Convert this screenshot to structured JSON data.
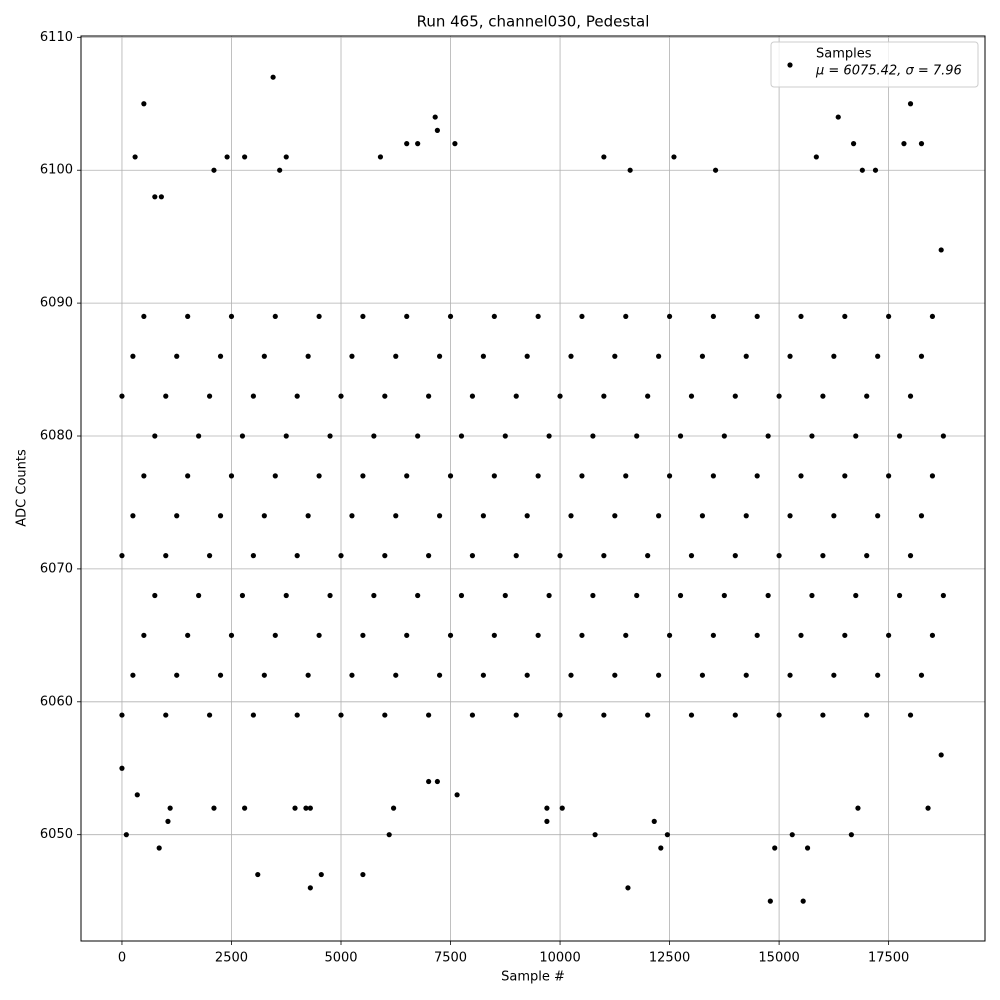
{
  "chart_data": {
    "type": "scatter",
    "title": "Run 465, channel030, Pedestal",
    "x_label": "Sample #",
    "y_label": "ADC Counts",
    "xlim": [
      -935,
      19700
    ],
    "ylim": [
      6042,
      6110.1
    ],
    "xticks": [
      0,
      2500,
      5000,
      7500,
      10000,
      12500,
      15000,
      17500
    ],
    "yticks": [
      6050,
      6060,
      6070,
      6080,
      6090,
      6100,
      6110
    ],
    "grid": true,
    "legend": "upper right",
    "legend_note": "μ = 6075.42, σ = 7.96",
    "series": [
      {
        "name": "Samples",
        "color": "#000000",
        "x": [
          0,
          1000,
          2000,
          3000,
          4000,
          5000,
          6000,
          7000,
          8000,
          9000,
          10000,
          11000,
          12000,
          13000,
          14000,
          15000,
          16000,
          17000,
          18000,
          250,
          1250,
          2250,
          3250,
          4250,
          5250,
          6250,
          7250,
          8250,
          9250,
          10250,
          11250,
          12250,
          13250,
          14250,
          15250,
          16250,
          17250,
          18250,
          500,
          1500,
          2500,
          3500,
          4500,
          5500,
          6500,
          7500,
          8500,
          9500,
          10500,
          11500,
          12500,
          13500,
          14500,
          15500,
          16500,
          17500,
          18500,
          750,
          1750,
          2750,
          3750,
          4750,
          5750,
          6750,
          7750,
          8750,
          9750,
          10750,
          11750,
          12750,
          13750,
          14750,
          15750,
          16750,
          17750,
          18750,
          0,
          1000,
          2000,
          3000,
          4000,
          5000,
          6000,
          7000,
          8000,
          9000,
          10000,
          11000,
          12000,
          13000,
          14000,
          15000,
          16000,
          17000,
          18000,
          250,
          1250,
          2250,
          3250,
          4250,
          5250,
          6250,
          7250,
          8250,
          9250,
          10250,
          11250,
          12250,
          13250,
          14250,
          15250,
          16250,
          17250,
          18250,
          500,
          1500,
          2500,
          3500,
          4500,
          5500,
          6500,
          7500,
          8500,
          9500,
          10500,
          11500,
          12500,
          13500,
          14500,
          15500,
          16500,
          17500,
          18500,
          750,
          1750,
          2750,
          3750,
          4750,
          5750,
          6750,
          7750,
          8750,
          9750,
          10750,
          11750,
          12750,
          13750,
          14750,
          15750,
          16750,
          17750,
          18750,
          0,
          1000,
          2000,
          3000,
          4000,
          5000,
          6000,
          7000,
          8000,
          9000,
          10000,
          11000,
          12000,
          13000,
          14000,
          15000,
          16000,
          17000,
          18000,
          250,
          1250,
          2250,
          3250,
          4250,
          5250,
          6250,
          7250,
          8250,
          9250,
          10250,
          11250,
          12250,
          13250,
          14250,
          15250,
          16250,
          17250,
          18250,
          500,
          1500,
          2500,
          3500,
          4500,
          5500,
          6500,
          7500,
          8500,
          9500,
          10500,
          11500,
          12500,
          13500,
          14500,
          15500,
          16500,
          17500,
          18500,
          0,
          100,
          500,
          300,
          350,
          850,
          1050,
          1100,
          900,
          750,
          2100,
          2400,
          2800,
          2100,
          2800,
          3100,
          3450,
          3600,
          3750,
          4300,
          4550,
          4200,
          4300,
          3950,
          5500,
          6100,
          6200,
          5900,
          6500,
          6750,
          7150,
          7200,
          7600,
          7000,
          7200,
          7650,
          9700,
          9700,
          10050,
          10800,
          11000,
          11550,
          11600,
          12150,
          12300,
          12450,
          12600,
          13550,
          14800,
          14900,
          15300,
          15550,
          15650,
          15850,
          16350,
          16700,
          16650,
          16800,
          16900,
          17200,
          17850,
          18000,
          18250,
          18400,
          18700,
          18700
        ],
        "values": [
          6059,
          6059,
          6059,
          6059,
          6059,
          6059,
          6059,
          6059,
          6059,
          6059,
          6059,
          6059,
          6059,
          6059,
          6059,
          6059,
          6059,
          6059,
          6059,
          6062,
          6062,
          6062,
          6062,
          6062,
          6062,
          6062,
          6062,
          6062,
          6062,
          6062,
          6062,
          6062,
          6062,
          6062,
          6062,
          6062,
          6062,
          6062,
          6065,
          6065,
          6065,
          6065,
          6065,
          6065,
          6065,
          6065,
          6065,
          6065,
          6065,
          6065,
          6065,
          6065,
          6065,
          6065,
          6065,
          6065,
          6065,
          6068,
          6068,
          6068,
          6068,
          6068,
          6068,
          6068,
          6068,
          6068,
          6068,
          6068,
          6068,
          6068,
          6068,
          6068,
          6068,
          6068,
          6068,
          6068,
          6071,
          6071,
          6071,
          6071,
          6071,
          6071,
          6071,
          6071,
          6071,
          6071,
          6071,
          6071,
          6071,
          6071,
          6071,
          6071,
          6071,
          6071,
          6071,
          6074,
          6074,
          6074,
          6074,
          6074,
          6074,
          6074,
          6074,
          6074,
          6074,
          6074,
          6074,
          6074,
          6074,
          6074,
          6074,
          6074,
          6074,
          6074,
          6077,
          6077,
          6077,
          6077,
          6077,
          6077,
          6077,
          6077,
          6077,
          6077,
          6077,
          6077,
          6077,
          6077,
          6077,
          6077,
          6077,
          6077,
          6077,
          6080,
          6080,
          6080,
          6080,
          6080,
          6080,
          6080,
          6080,
          6080,
          6080,
          6080,
          6080,
          6080,
          6080,
          6080,
          6080,
          6080,
          6080,
          6080,
          6083,
          6083,
          6083,
          6083,
          6083,
          6083,
          6083,
          6083,
          6083,
          6083,
          6083,
          6083,
          6083,
          6083,
          6083,
          6083,
          6083,
          6083,
          6083,
          6086,
          6086,
          6086,
          6086,
          6086,
          6086,
          6086,
          6086,
          6086,
          6086,
          6086,
          6086,
          6086,
          6086,
          6086,
          6086,
          6086,
          6086,
          6086,
          6089,
          6089,
          6089,
          6089,
          6089,
          6089,
          6089,
          6089,
          6089,
          6089,
          6089,
          6089,
          6089,
          6089,
          6089,
          6089,
          6089,
          6089,
          6089,
          6055,
          6050,
          6105,
          6101,
          6053,
          6049,
          6051,
          6052,
          6098,
          6098,
          6100,
          6101,
          6101,
          6052,
          6052,
          6047,
          6107,
          6100,
          6101,
          6046,
          6047,
          6052,
          6052,
          6052,
          6047,
          6050,
          6052,
          6101,
          6102,
          6102,
          6104,
          6103,
          6102,
          6054,
          6054,
          6053,
          6051,
          6052,
          6052,
          6050,
          6101,
          6046,
          6100,
          6051,
          6049,
          6050,
          6101,
          6100,
          6045,
          6049,
          6050,
          6045,
          6049,
          6101,
          6104,
          6102,
          6050,
          6052,
          6100,
          6100,
          6102,
          6105,
          6102,
          6052,
          6056,
          6094
        ]
      }
    ]
  }
}
